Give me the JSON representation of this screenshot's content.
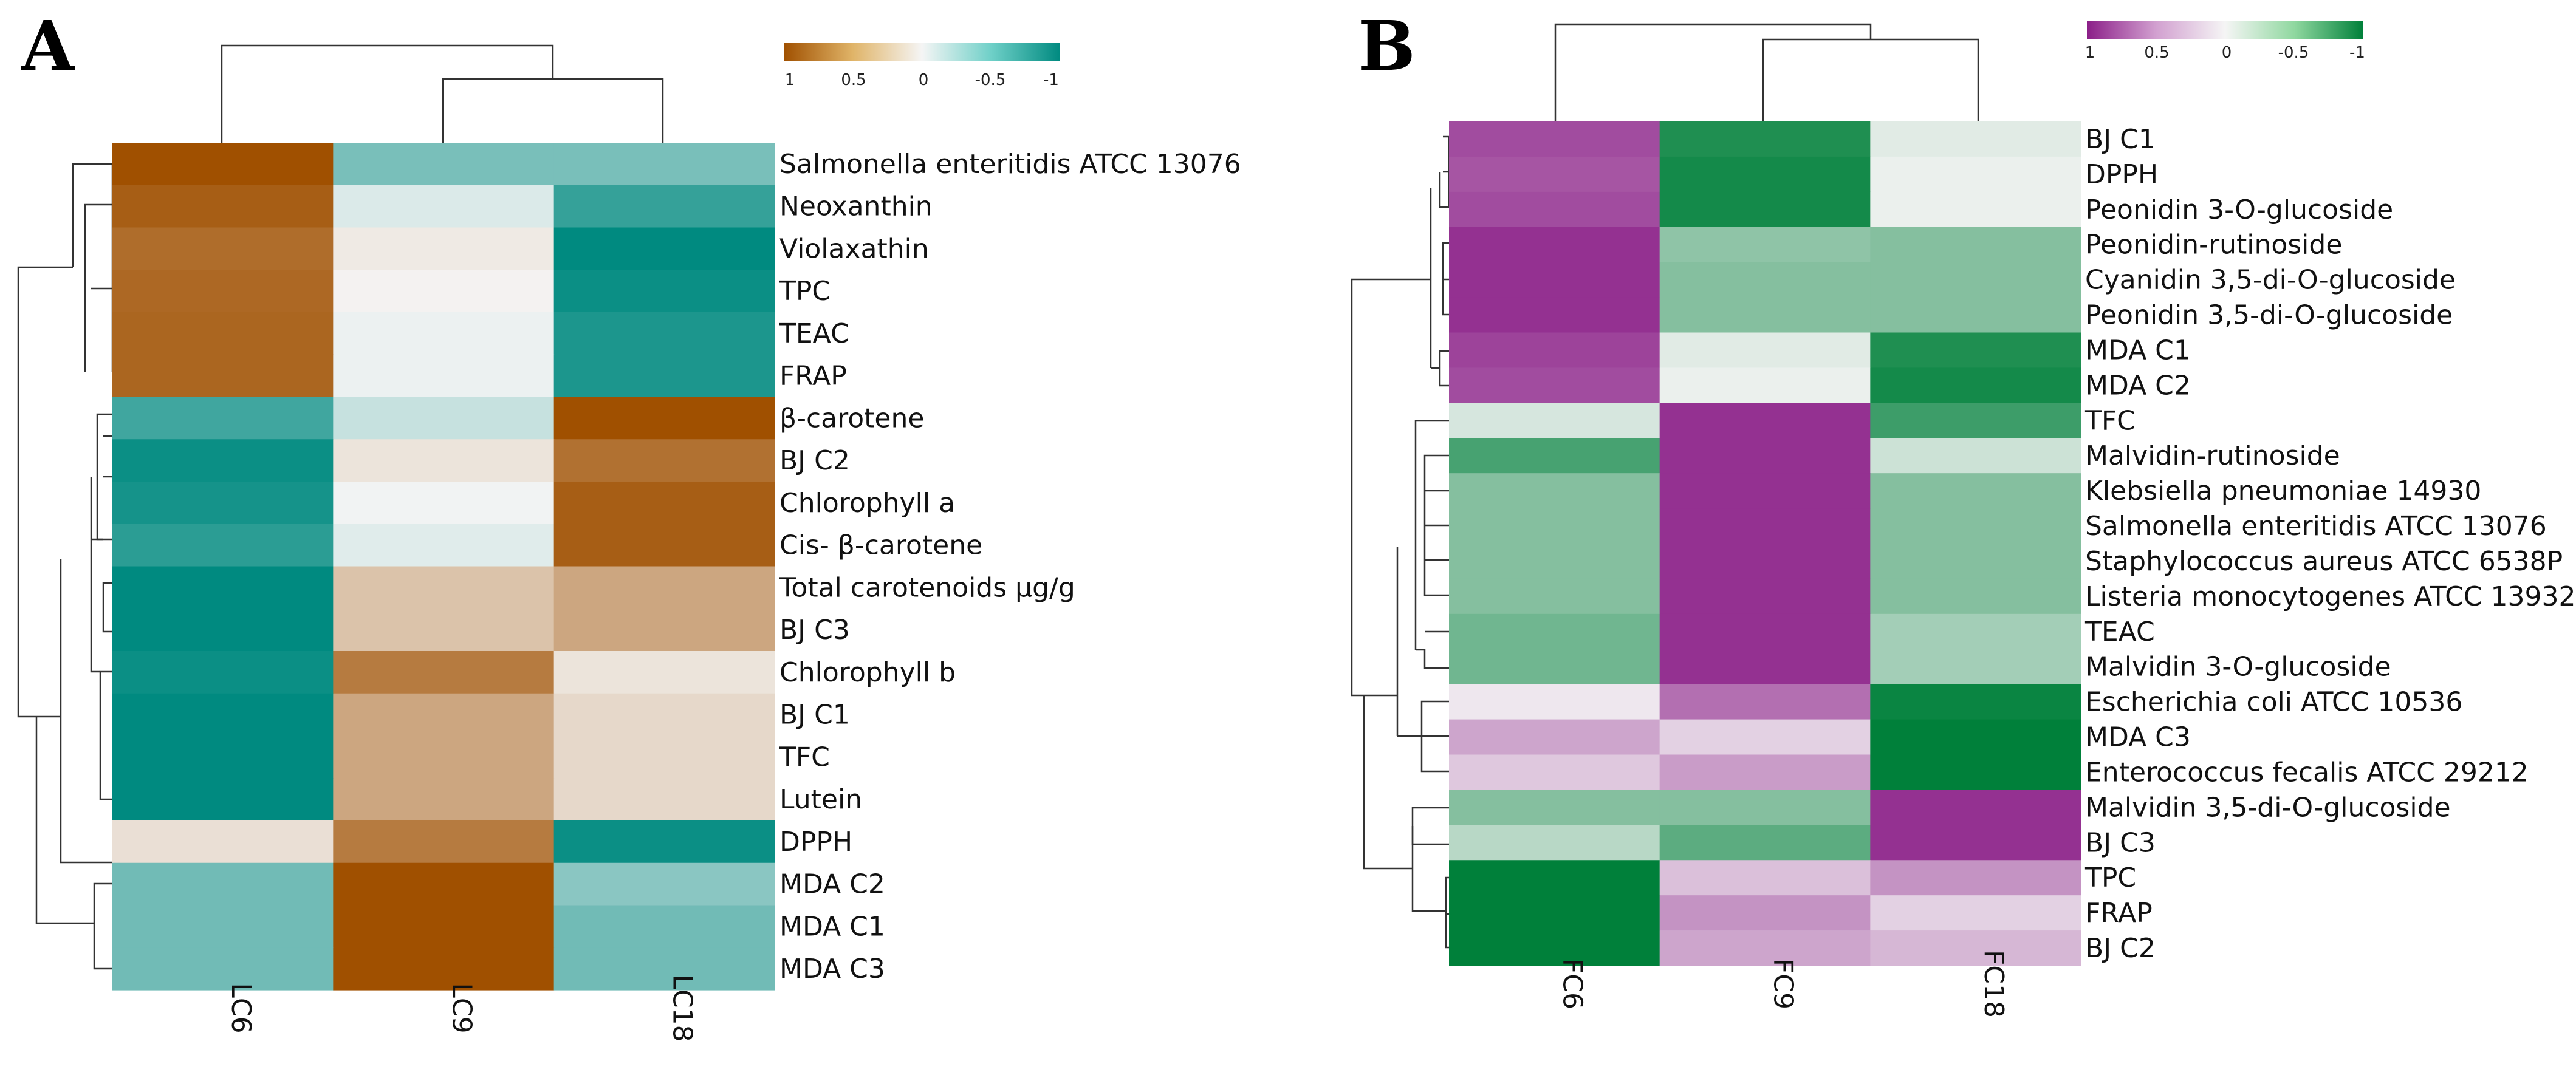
{
  "chart_data": [
    {
      "type": "heatmap",
      "panel_label": "A",
      "columns": [
        "LC6",
        "LC9",
        "LC18"
      ],
      "rows": [
        "Salmonella enteritidis ATCC 13076",
        "Neoxanthin",
        "Violaxathin",
        "TPC",
        "TEAC",
        "FRAP",
        "β-carotene",
        "BJ C2",
        "Chlorophyll a",
        "Cis- β-carotene",
        "Total carotenoids μg/g",
        "BJ C3",
        "Chlorophyll b",
        "BJ C1",
        "TFC",
        "Lutein",
        "DPPH",
        "MDA C2",
        "MDA C1",
        "MDA C3"
      ],
      "values": [
        [
          1.15,
          -0.58,
          -0.58
        ],
        [
          1.05,
          -0.12,
          -0.9
        ],
        [
          0.95,
          0.08,
          -1.15
        ],
        [
          0.98,
          0.02,
          -1.1
        ],
        [
          1.0,
          -0.04,
          -1.02
        ],
        [
          1.0,
          -0.04,
          -1.02
        ],
        [
          -0.85,
          -0.22,
          1.15
        ],
        [
          -1.1,
          0.12,
          0.92
        ],
        [
          -1.05,
          -0.02,
          1.05
        ],
        [
          -0.95,
          -0.1,
          1.05
        ],
        [
          -1.15,
          0.35,
          0.55
        ],
        [
          -1.15,
          0.35,
          0.55
        ],
        [
          -1.1,
          0.85,
          0.12
        ],
        [
          -1.15,
          0.55,
          0.2
        ],
        [
          -1.15,
          0.55,
          0.2
        ],
        [
          -1.15,
          0.55,
          0.2
        ],
        [
          0.15,
          0.85,
          -1.1
        ],
        [
          -0.62,
          1.15,
          -0.5
        ],
        [
          -0.62,
          1.15,
          -0.62
        ],
        [
          -0.62,
          1.15,
          -0.62
        ]
      ],
      "color_scale": {
        "low_color": "#008a80",
        "mid_color": "#f5f5f5",
        "high_color": "#a05000",
        "low_value": -1.15,
        "high_value": 1.15
      },
      "legend": {
        "tick_labels": [
          "1",
          "0.5",
          "0",
          "-0.5",
          "-1"
        ],
        "placement": "top-right"
      }
    },
    {
      "type": "heatmap",
      "panel_label": "B",
      "columns": [
        "FC6",
        "FC9",
        "FC18"
      ],
      "rows": [
        "BJ C1",
        "DPPH",
        "Peonidin 3-O-glucoside",
        "Peonidin-rutinoside",
        "Cyanidin 3,5-di-O-glucoside",
        "Peonidin 3,5-di-O-glucoside",
        "MDA C1",
        "MDA C2",
        "TFC",
        "Malvidin-rutinoside",
        "Klebsiella pneumoniae 14930",
        "Salmonella enteritidis ATCC 13076",
        "Staphylococcus aureus ATCC 6538P",
        "Listeria monocytogenes ATCC 13932",
        "TEAC",
        "Malvidin 3-O-glucoside",
        "Escherichia coli ATCC 10536",
        "MDA C3",
        "Enterococcus fecalis ATCC 29212",
        "Malvidin 3,5-di-O-glucoside",
        "BJ C3",
        "TPC",
        "FRAP",
        "BJ C2"
      ],
      "values": [
        [
          0.95,
          -1.05,
          -0.1
        ],
        [
          0.9,
          -1.1,
          -0.05
        ],
        [
          0.95,
          -1.1,
          -0.05
        ],
        [
          1.1,
          -0.5,
          -0.55
        ],
        [
          1.1,
          -0.55,
          -0.55
        ],
        [
          1.1,
          -0.55,
          -0.55
        ],
        [
          1.0,
          -0.1,
          -1.05
        ],
        [
          0.95,
          -0.05,
          -1.1
        ],
        [
          -0.15,
          1.1,
          -0.9
        ],
        [
          -0.85,
          1.1,
          -0.2
        ],
        [
          -0.55,
          1.1,
          -0.55
        ],
        [
          -0.55,
          1.1,
          -0.55
        ],
        [
          -0.55,
          1.1,
          -0.55
        ],
        [
          -0.55,
          1.1,
          -0.55
        ],
        [
          -0.65,
          1.1,
          -0.4
        ],
        [
          -0.65,
          1.1,
          -0.4
        ],
        [
          0.08,
          0.75,
          -1.15
        ],
        [
          0.45,
          0.2,
          -1.2
        ],
        [
          0.25,
          0.5,
          -1.2
        ],
        [
          -0.55,
          -0.55,
          1.1
        ],
        [
          -0.3,
          -0.75,
          1.1
        ],
        [
          -1.2,
          0.3,
          0.55
        ],
        [
          -1.2,
          0.55,
          0.2
        ],
        [
          -1.2,
          0.45,
          0.35
        ]
      ],
      "color_scale": {
        "low_color": "#00803a",
        "mid_color": "#f5f5f5",
        "high_color": "#8b1f88",
        "low_value": -1.2,
        "high_value": 1.2
      },
      "legend": {
        "tick_labels": [
          "1",
          "0.5",
          "0",
          "-0.5",
          "-1"
        ],
        "placement": "top-right"
      }
    }
  ]
}
